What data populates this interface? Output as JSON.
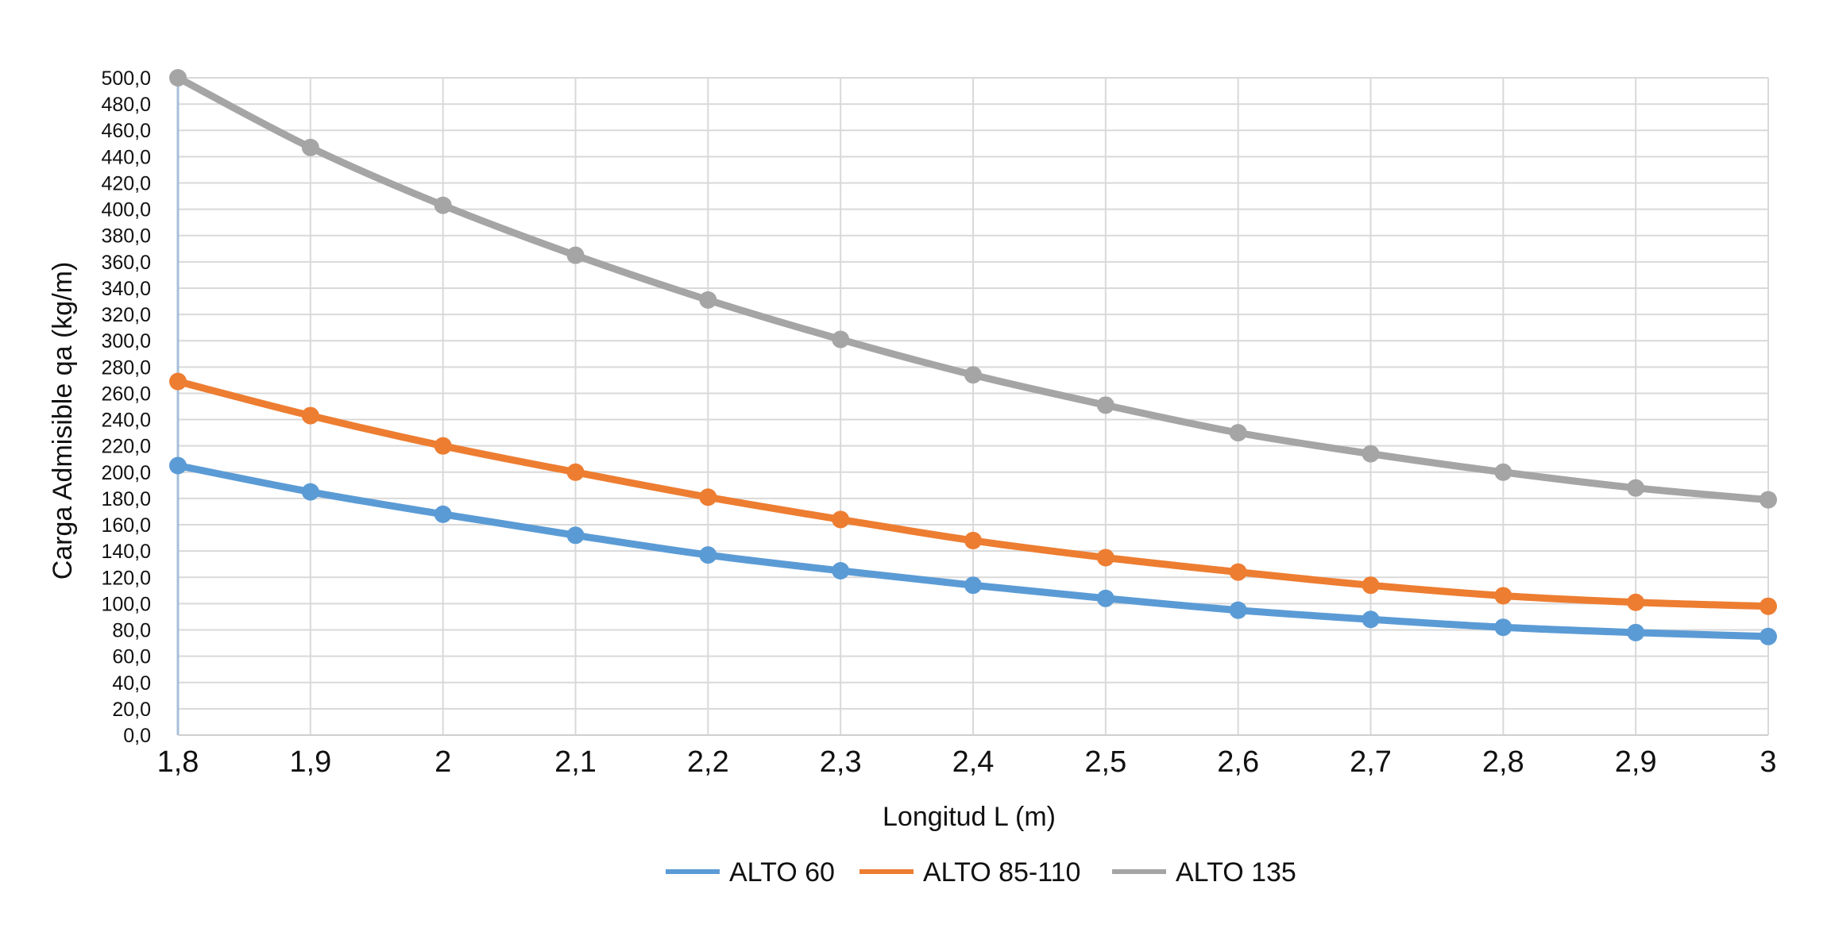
{
  "chart_data": {
    "type": "line",
    "x": [
      "1,8",
      "1,9",
      "2",
      "2,1",
      "2,2",
      "2,3",
      "2,4",
      "2,5",
      "2,6",
      "2,7",
      "2,8",
      "2,9",
      "3"
    ],
    "y_ticks": [
      "0,0",
      "20,0",
      "40,0",
      "60,0",
      "80,0",
      "100,0",
      "120,0",
      "140,0",
      "160,0",
      "180,0",
      "200,0",
      "220,0",
      "240,0",
      "260,0",
      "280,0",
      "300,0",
      "320,0",
      "340,0",
      "360,0",
      "380,0",
      "400,0",
      "420,0",
      "440,0",
      "460,0",
      "480,0",
      "500,0"
    ],
    "ylim": [
      0,
      500
    ],
    "xlabel": "Longitud L (m)",
    "ylabel": "Carga Admisible qa  (kg/m)",
    "grid": true,
    "legend_position": "bottom",
    "series": [
      {
        "name": "ALTO 60",
        "color": "#5B9BD5",
        "values": [
          205,
          185,
          168,
          152,
          137,
          125,
          114,
          104,
          95,
          88,
          82,
          78,
          75
        ]
      },
      {
        "name": "ALTO 85-110",
        "color": "#ED7D31",
        "values": [
          269,
          243,
          220,
          200,
          181,
          164,
          148,
          135,
          124,
          114,
          106,
          101,
          98
        ]
      },
      {
        "name": "ALTO 135",
        "color": "#A5A5A5",
        "values": [
          500,
          447,
          403,
          365,
          331,
          301,
          274,
          251,
          230,
          214,
          200,
          188,
          179
        ]
      }
    ]
  }
}
